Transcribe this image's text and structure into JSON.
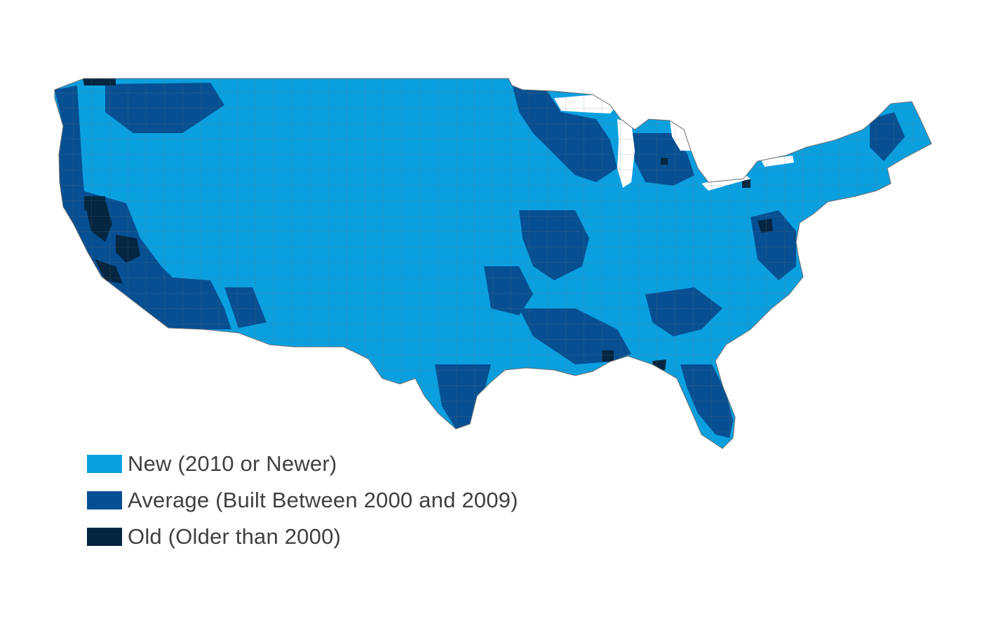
{
  "map": {
    "region": "contiguous-united-states",
    "unit": "county",
    "border_color": "#6e6e6e",
    "background": "#ffffff"
  },
  "legend": {
    "items": [
      {
        "key": "new",
        "label": "New (2010 or Newer)",
        "color": "#0aa0e0"
      },
      {
        "key": "average",
        "label": "Average (Built Between 2000 and 2009)",
        "color": "#064f93"
      },
      {
        "key": "old",
        "label": "Old (Older than 2000)",
        "color": "#042640"
      }
    ]
  }
}
